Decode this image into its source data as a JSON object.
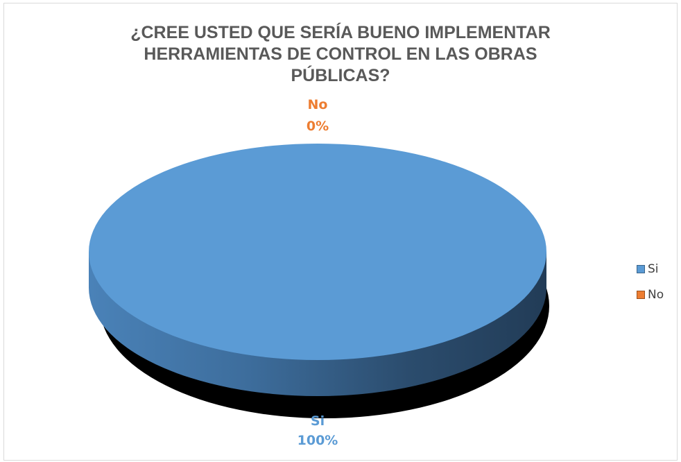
{
  "chart_data": {
    "type": "pie",
    "title_lines": [
      "¿CREE USTED QUE SERÍA BUENO IMPLEMENTAR",
      "HERRAMIENTAS DE CONTROL EN LAS OBRAS",
      "PÚBLICAS?"
    ],
    "categories": [
      "Si",
      "No"
    ],
    "values": [
      100,
      0
    ],
    "value_labels": [
      "100%",
      "0%"
    ],
    "colors": [
      "#5b9bd5",
      "#ed7d31"
    ],
    "style": "3d",
    "legend_position": "right"
  }
}
